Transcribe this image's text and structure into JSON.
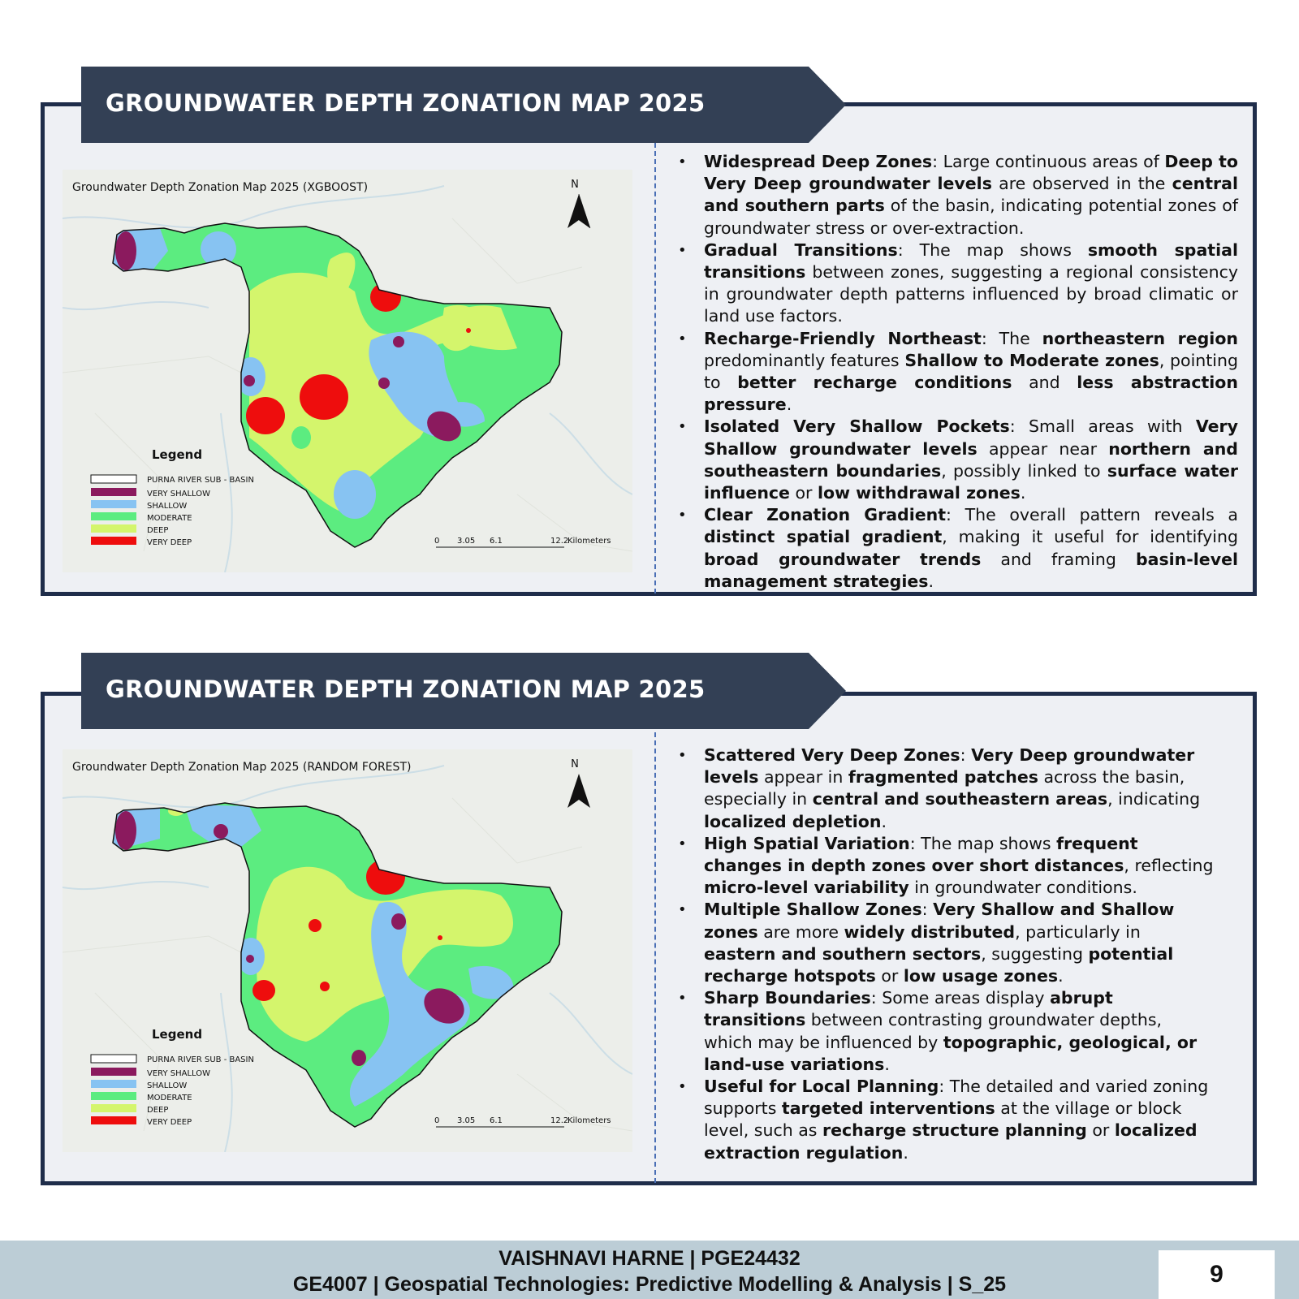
{
  "panels": [
    {
      "banner_title": "GROUNDWATER DEPTH ZONATION MAP 2025",
      "map": {
        "title": "Groundwater Depth Zonation Map 2025 (XGBOOST)",
        "north": "N",
        "legend_title": "Legend",
        "legend": [
          {
            "label": "PURNA RIVER SUB - BASIN",
            "color": "#ffffff"
          },
          {
            "label": "VERY SHALLOW",
            "color": "#8b1a5e"
          },
          {
            "label": "SHALLOW",
            "color": "#87c3f2"
          },
          {
            "label": "MODERATE",
            "color": "#5cec80"
          },
          {
            "label": "DEEP",
            "color": "#d4f56c"
          },
          {
            "label": "VERY DEEP",
            "color": "#ee0d0d"
          }
        ],
        "scale": [
          "0",
          "3.05",
          "6.1",
          "12.2",
          "Kilometers"
        ]
      },
      "bullets": [
        [
          {
            "t": "Widespread Deep Zones",
            "b": true
          },
          {
            "t": ": Large continuous areas of ",
            "b": false
          },
          {
            "t": "Deep to Very Deep groundwater levels",
            "b": true
          },
          {
            "t": " are observed in the ",
            "b": false
          },
          {
            "t": "central and southern parts",
            "b": true
          },
          {
            "t": " of the basin, indicating potential zones of groundwater stress or over-extraction.",
            "b": false
          }
        ],
        [
          {
            "t": "Gradual Transitions",
            "b": true
          },
          {
            "t": ": The map shows ",
            "b": false
          },
          {
            "t": "smooth spatial transitions",
            "b": true
          },
          {
            "t": " between zones, suggesting a regional consistency in groundwater depth patterns influenced by broad climatic or land use factors.",
            "b": false
          }
        ],
        [
          {
            "t": "Recharge-Friendly Northeast",
            "b": true
          },
          {
            "t": ": The ",
            "b": false
          },
          {
            "t": "northeastern region",
            "b": true
          },
          {
            "t": " predominantly features ",
            "b": false
          },
          {
            "t": "Shallow to Moderate zones",
            "b": true
          },
          {
            "t": ", pointing to ",
            "b": false
          },
          {
            "t": "better recharge conditions",
            "b": true
          },
          {
            "t": " and ",
            "b": false
          },
          {
            "t": "less abstraction pressure",
            "b": true
          },
          {
            "t": ".",
            "b": false
          }
        ],
        [
          {
            "t": "Isolated Very Shallow Pockets",
            "b": true
          },
          {
            "t": ": Small areas with ",
            "b": false
          },
          {
            "t": "Very Shallow groundwater levels",
            "b": true
          },
          {
            "t": " appear near ",
            "b": false
          },
          {
            "t": "northern and southeastern boundaries",
            "b": true
          },
          {
            "t": ", possibly linked to ",
            "b": false
          },
          {
            "t": "surface water influence",
            "b": true
          },
          {
            "t": " or ",
            "b": false
          },
          {
            "t": "low withdrawal zones",
            "b": true
          },
          {
            "t": ".",
            "b": false
          }
        ],
        [
          {
            "t": "Clear Zonation Gradient",
            "b": true
          },
          {
            "t": ": The overall pattern reveals a ",
            "b": false
          },
          {
            "t": "distinct spatial gradient",
            "b": true
          },
          {
            "t": ", making it useful for identifying ",
            "b": false
          },
          {
            "t": "broad groundwater trends",
            "b": true
          },
          {
            "t": " and framing ",
            "b": false
          },
          {
            "t": "basin-level management strategies",
            "b": true
          },
          {
            "t": ".",
            "b": false
          }
        ]
      ]
    },
    {
      "banner_title": "GROUNDWATER DEPTH ZONATION MAP 2025",
      "map": {
        "title": "Groundwater Depth Zonation Map 2025 (RANDOM FOREST)",
        "north": "N",
        "legend_title": "Legend",
        "legend": [
          {
            "label": "PURNA RIVER SUB - BASIN",
            "color": "#ffffff"
          },
          {
            "label": "VERY SHALLOW",
            "color": "#8b1a5e"
          },
          {
            "label": "SHALLOW",
            "color": "#87c3f2"
          },
          {
            "label": "MODERATE",
            "color": "#5cec80"
          },
          {
            "label": "DEEP",
            "color": "#d4f56c"
          },
          {
            "label": "VERY DEEP",
            "color": "#ee0d0d"
          }
        ],
        "scale": [
          "0",
          "3.05",
          "6.1",
          "12.2",
          "Kilometers"
        ]
      },
      "bullets": [
        [
          {
            "t": "Scattered Very Deep Zones",
            "b": true
          },
          {
            "t": ": ",
            "b": false
          },
          {
            "t": "Very Deep groundwater levels",
            "b": true
          },
          {
            "t": " appear in ",
            "b": false
          },
          {
            "t": "fragmented patches",
            "b": true
          },
          {
            "t": " across the basin, especially in ",
            "b": false
          },
          {
            "t": "central and southeastern areas",
            "b": true
          },
          {
            "t": ", indicating ",
            "b": false
          },
          {
            "t": "localized depletion",
            "b": true
          },
          {
            "t": ".",
            "b": false
          }
        ],
        [
          {
            "t": "High Spatial Variation",
            "b": true
          },
          {
            "t": ": The map shows ",
            "b": false
          },
          {
            "t": "frequent changes in depth zones over short distances",
            "b": true
          },
          {
            "t": ", reflecting ",
            "b": false
          },
          {
            "t": "micro-level variability",
            "b": true
          },
          {
            "t": " in groundwater conditions.",
            "b": false
          }
        ],
        [
          {
            "t": "Multiple Shallow Zones",
            "b": true
          },
          {
            "t": ": ",
            "b": false
          },
          {
            "t": "Very Shallow and Shallow zones",
            "b": true
          },
          {
            "t": " are more ",
            "b": false
          },
          {
            "t": "widely distributed",
            "b": true
          },
          {
            "t": ", particularly in ",
            "b": false
          },
          {
            "t": "eastern and southern sectors",
            "b": true
          },
          {
            "t": ", suggesting ",
            "b": false
          },
          {
            "t": "potential recharge hotspots",
            "b": true
          },
          {
            "t": " or ",
            "b": false
          },
          {
            "t": "low usage zones",
            "b": true
          },
          {
            "t": ".",
            "b": false
          }
        ],
        [
          {
            "t": "Sharp Boundaries",
            "b": true
          },
          {
            "t": ": Some areas display ",
            "b": false
          },
          {
            "t": "abrupt transitions",
            "b": true
          },
          {
            "t": " between contrasting groundwater depths, which may be influenced by ",
            "b": false
          },
          {
            "t": "topographic, geological, or land-use variations",
            "b": true
          },
          {
            "t": ".",
            "b": false
          }
        ],
        [
          {
            "t": "Useful for Local Planning",
            "b": true
          },
          {
            "t": ": The detailed and varied zoning supports ",
            "b": false
          },
          {
            "t": "targeted interventions",
            "b": true
          },
          {
            "t": " at the village or block level, such as ",
            "b": false
          },
          {
            "t": "recharge structure planning",
            "b": true
          },
          {
            "t": " or ",
            "b": false
          },
          {
            "t": "localized extraction regulation",
            "b": true
          },
          {
            "t": ".",
            "b": false
          }
        ]
      ]
    }
  ],
  "footer": {
    "line1": "VAISHNAVI HARNE | PGE24432",
    "line2": "GE4007 | Geospatial Technologies: Predictive Modelling & Analysis | S_25",
    "page_number": "9"
  },
  "colors": {
    "banner": "#334055",
    "panel_border": "#1f2d4a",
    "panel_bg": "#eef0f4",
    "footer_bg": "#bccdd6",
    "divider": "#4a6fb5"
  }
}
